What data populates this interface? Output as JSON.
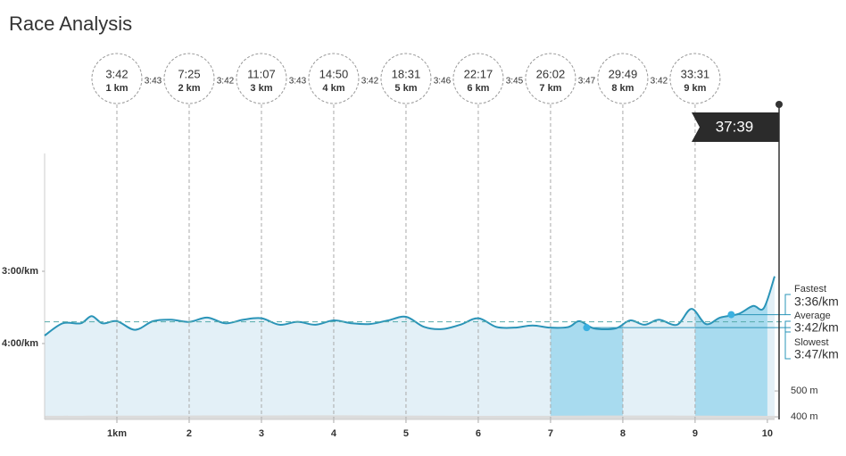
{
  "title": "Race Analysis",
  "splits": [
    {
      "km": 1,
      "label": "1 km",
      "time": "3:42"
    },
    {
      "km": 2,
      "label": "2 km",
      "time": "7:25"
    },
    {
      "km": 3,
      "label": "3 km",
      "time": "11:07"
    },
    {
      "km": 4,
      "label": "4 km",
      "time": "14:50"
    },
    {
      "km": 5,
      "label": "5 km",
      "time": "18:31"
    },
    {
      "km": 6,
      "label": "6 km",
      "time": "22:17"
    },
    {
      "km": 7,
      "label": "7 km",
      "time": "26:02"
    },
    {
      "km": 8,
      "label": "8 km",
      "time": "29:49"
    },
    {
      "km": 9,
      "label": "9 km",
      "time": "33:31"
    }
  ],
  "split_paces": [
    "3:43",
    "3:42",
    "3:43",
    "3:42",
    "3:46",
    "3:45",
    "3:47",
    "3:42"
  ],
  "finish_time": "37:39",
  "chart_data": {
    "type": "line",
    "x": [
      0,
      0.25,
      0.5,
      0.65,
      0.8,
      1.0,
      1.25,
      1.5,
      1.75,
      2.0,
      2.25,
      2.5,
      2.75,
      3.0,
      3.25,
      3.5,
      3.75,
      4.0,
      4.25,
      4.5,
      4.75,
      5.0,
      5.25,
      5.5,
      5.75,
      6.0,
      6.25,
      6.5,
      6.75,
      7.0,
      7.25,
      7.4,
      7.6,
      7.9,
      8.1,
      8.3,
      8.5,
      8.75,
      8.95,
      9.15,
      9.35,
      9.6,
      9.8,
      9.95,
      10.1
    ],
    "series": [
      {
        "color": "#2a94b8",
        "values": [
          3.89,
          3.72,
          3.72,
          3.62,
          3.72,
          3.69,
          3.81,
          3.69,
          3.67,
          3.7,
          3.64,
          3.72,
          3.67,
          3.65,
          3.74,
          3.7,
          3.74,
          3.68,
          3.72,
          3.73,
          3.68,
          3.63,
          3.77,
          3.8,
          3.74,
          3.65,
          3.77,
          3.78,
          3.75,
          3.78,
          3.77,
          3.69,
          3.79,
          3.79,
          3.68,
          3.74,
          3.67,
          3.74,
          3.52,
          3.73,
          3.64,
          3.59,
          3.48,
          3.51,
          3.07
        ]
      }
    ],
    "highlights": [
      [
        7,
        8
      ],
      [
        9,
        10
      ]
    ],
    "elevation": {
      "axis": "y2",
      "color": "#dcdcdc",
      "x": [
        0,
        2,
        4,
        6,
        8,
        10.1
      ],
      "values": [
        404,
        405,
        406,
        404,
        405,
        404
      ]
    },
    "xlim": [
      0,
      10.1
    ],
    "xticks": [
      {
        "value": 1,
        "label": "1km"
      },
      2,
      3,
      4,
      5,
      6,
      7,
      8,
      9,
      10
    ],
    "ylim": [
      5.05,
      1.37
    ],
    "yticks": [
      {
        "value": 3,
        "label": "3:00/km"
      },
      {
        "value": 4,
        "label": "4:00/km"
      }
    ],
    "y2lim": [
      390,
      1417
    ],
    "y2ticks": [
      {
        "value": 500,
        "label": "500 m"
      },
      {
        "value": 400,
        "label": "400 m"
      }
    ],
    "markers": [
      {
        "name": "Fastest",
        "value": 3.6,
        "label": "3:36/km",
        "x": 9.5
      },
      {
        "name": "Average",
        "value": 3.7,
        "label": "3:42/km"
      },
      {
        "name": "Slowest",
        "value": 3.78,
        "label": "3:47/km",
        "x": 7.5
      }
    ]
  }
}
